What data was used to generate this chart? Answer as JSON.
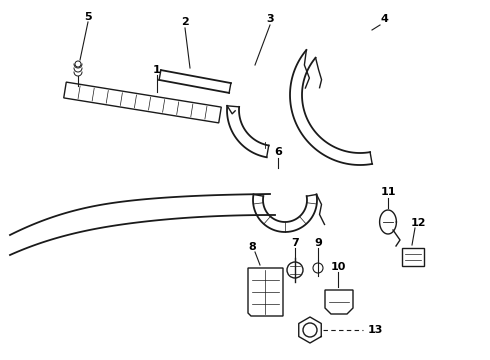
{
  "background_color": "#ffffff",
  "line_color": "#1a1a1a",
  "label_color": "#000000",
  "fig_width": 4.9,
  "fig_height": 3.6,
  "dpi": 100
}
